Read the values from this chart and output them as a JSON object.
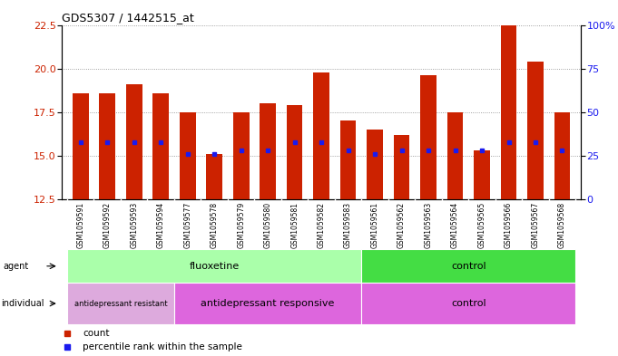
{
  "title": "GDS5307 / 1442515_at",
  "samples": [
    "GSM1059591",
    "GSM1059592",
    "GSM1059593",
    "GSM1059594",
    "GSM1059577",
    "GSM1059578",
    "GSM1059579",
    "GSM1059580",
    "GSM1059581",
    "GSM1059582",
    "GSM1059583",
    "GSM1059561",
    "GSM1059562",
    "GSM1059563",
    "GSM1059564",
    "GSM1059565",
    "GSM1059566",
    "GSM1059567",
    "GSM1059568"
  ],
  "bar_heights": [
    18.6,
    18.6,
    19.1,
    18.6,
    17.5,
    15.1,
    17.5,
    18.0,
    17.9,
    19.8,
    17.0,
    16.5,
    16.2,
    19.6,
    17.5,
    15.3,
    22.5,
    20.4,
    17.5
  ],
  "blue_markers": [
    15.8,
    15.8,
    15.8,
    15.8,
    15.1,
    15.1,
    15.3,
    15.3,
    15.8,
    15.8,
    15.3,
    15.1,
    15.3,
    15.3,
    15.3,
    15.3,
    15.8,
    15.8,
    15.3
  ],
  "ylim_left": [
    12.5,
    22.5
  ],
  "ylim_right": [
    0,
    100
  ],
  "yticks_left": [
    12.5,
    15.0,
    17.5,
    20.0,
    22.5
  ],
  "yticks_right": [
    0,
    25,
    50,
    75,
    100
  ],
  "ytick_labels_right": [
    "0",
    "25",
    "50",
    "75",
    "100%"
  ],
  "bar_color": "#cc2200",
  "blue_color": "#1a1aee",
  "grid_color": "#888888",
  "agent_fluoxetine_color": "#aaffaa",
  "agent_control_color": "#44dd44",
  "indiv_resistant_color": "#ddaadd",
  "indiv_responsive_color": "#dd66dd",
  "indiv_control_color": "#dd66dd",
  "xtick_bg": "#d8d8d8",
  "agent_groups": [
    {
      "label": "fluoxetine",
      "start": 0,
      "end": 11
    },
    {
      "label": "control",
      "start": 11,
      "end": 19
    }
  ],
  "individual_groups": [
    {
      "label": "antidepressant resistant",
      "start": 0,
      "end": 4
    },
    {
      "label": "antidepressant responsive",
      "start": 4,
      "end": 11
    },
    {
      "label": "control",
      "start": 11,
      "end": 19
    }
  ],
  "legend_count_label": "count",
  "legend_pct_label": "percentile rank within the sample"
}
